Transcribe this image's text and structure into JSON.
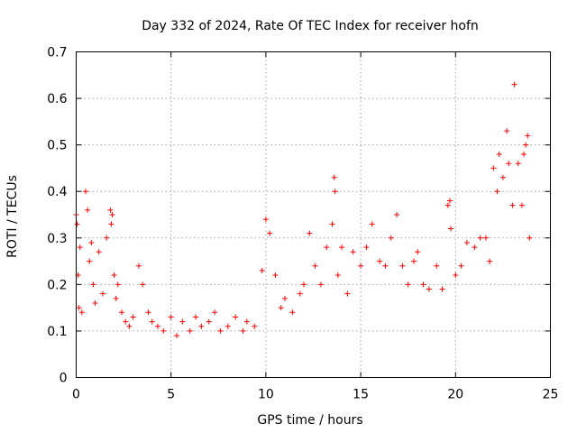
{
  "chart_data": {
    "type": "scatter",
    "title": "Day 332 of 2024, Rate Of TEC Index for receiver hofn",
    "xlabel": "GPS time / hours",
    "ylabel": "ROTI / TECUs",
    "xlim": [
      0,
      25
    ],
    "ylim": [
      0,
      0.7
    ],
    "xticks": [
      "0",
      "5",
      "10",
      "15",
      "20",
      "25"
    ],
    "yticks": [
      "0",
      "0.1",
      "0.2",
      "0.3",
      "0.4",
      "0.5",
      "0.6",
      "0.7"
    ],
    "grid": true,
    "marker": "plus",
    "color": "#ff0000",
    "series": [
      {
        "name": "ROTI",
        "x": [
          0.0,
          0.05,
          0.1,
          0.15,
          0.2,
          0.3,
          0.5,
          0.6,
          0.7,
          0.8,
          0.9,
          1.0,
          1.2,
          1.4,
          1.6,
          1.8,
          1.85,
          1.9,
          2.0,
          2.1,
          2.2,
          2.4,
          2.6,
          2.8,
          3.0,
          3.3,
          3.5,
          3.8,
          4.0,
          4.3,
          4.6,
          5.0,
          5.3,
          5.6,
          6.0,
          6.3,
          6.6,
          7.0,
          7.3,
          7.6,
          8.0,
          8.4,
          8.8,
          9.0,
          9.4,
          9.8,
          10.0,
          10.2,
          10.5,
          10.8,
          11.0,
          11.4,
          11.8,
          12.0,
          12.3,
          12.6,
          12.9,
          13.2,
          13.5,
          13.6,
          13.65,
          13.8,
          14.0,
          14.3,
          14.6,
          15.0,
          15.3,
          15.6,
          16.0,
          16.3,
          16.6,
          16.9,
          17.2,
          17.5,
          17.8,
          18.0,
          18.3,
          18.6,
          19.0,
          19.3,
          19.6,
          19.7,
          19.75,
          20.0,
          20.3,
          20.6,
          21.0,
          21.3,
          21.6,
          21.8,
          22.0,
          22.2,
          22.3,
          22.5,
          22.7,
          22.8,
          23.0,
          23.1,
          23.3,
          23.5,
          23.6,
          23.7,
          23.8,
          23.9
        ],
        "y": [
          0.35,
          0.33,
          0.22,
          0.15,
          0.28,
          0.14,
          0.4,
          0.36,
          0.25,
          0.29,
          0.2,
          0.16,
          0.27,
          0.18,
          0.3,
          0.36,
          0.33,
          0.35,
          0.22,
          0.17,
          0.2,
          0.14,
          0.12,
          0.11,
          0.13,
          0.24,
          0.2,
          0.14,
          0.12,
          0.11,
          0.1,
          0.13,
          0.09,
          0.12,
          0.1,
          0.13,
          0.11,
          0.12,
          0.14,
          0.1,
          0.11,
          0.13,
          0.1,
          0.12,
          0.11,
          0.23,
          0.34,
          0.31,
          0.22,
          0.15,
          0.17,
          0.14,
          0.18,
          0.2,
          0.31,
          0.24,
          0.2,
          0.28,
          0.33,
          0.43,
          0.4,
          0.22,
          0.28,
          0.18,
          0.27,
          0.24,
          0.28,
          0.33,
          0.25,
          0.24,
          0.3,
          0.35,
          0.24,
          0.2,
          0.25,
          0.27,
          0.2,
          0.19,
          0.24,
          0.19,
          0.37,
          0.38,
          0.32,
          0.22,
          0.24,
          0.29,
          0.28,
          0.3,
          0.3,
          0.25,
          0.45,
          0.4,
          0.48,
          0.43,
          0.53,
          0.46,
          0.37,
          0.63,
          0.46,
          0.37,
          0.48,
          0.5,
          0.52,
          0.3
        ]
      }
    ]
  }
}
